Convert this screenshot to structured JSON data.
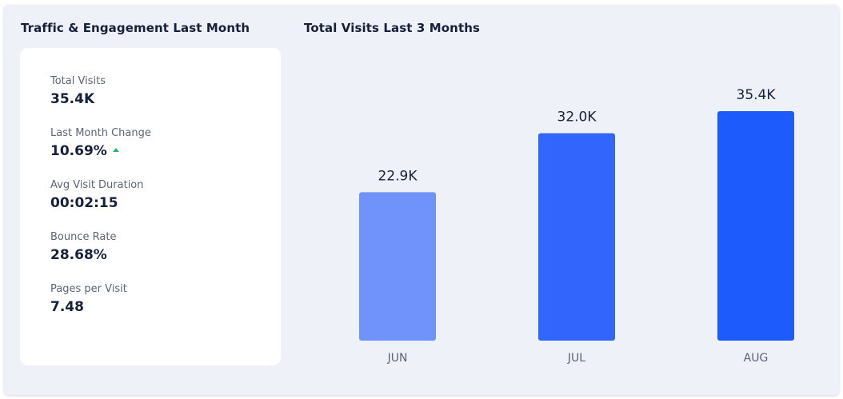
{
  "left_panel": {
    "title": "Traffic & Engagement Last Month",
    "metrics": [
      {
        "label": "Total Visits",
        "value": "35.4K"
      },
      {
        "label": "Last Month Change",
        "value": "10.69%",
        "trend": "up"
      },
      {
        "label": "Avg Visit Duration",
        "value": "00:02:15"
      },
      {
        "label": "Bounce Rate",
        "value": "28.68%"
      },
      {
        "label": "Pages per Visit",
        "value": "7.48"
      }
    ]
  },
  "colors": {
    "trend_up": "#22b573",
    "bar_light": "#6f93fb",
    "bar_mid": "#3165fb",
    "bar_dark": "#1e5bfd"
  },
  "chart_data": {
    "type": "bar",
    "title": "Total Visits Last 3 Months",
    "categories": [
      "JUN",
      "JUL",
      "AUG"
    ],
    "values": [
      22.9,
      32.0,
      35.4
    ],
    "value_labels": [
      "22.9K",
      "32.0K",
      "35.4K"
    ],
    "unit": "K",
    "ylim": [
      0,
      35.4
    ],
    "grid": false,
    "legend": "none",
    "xlabel": "",
    "ylabel": "",
    "bar_colors": [
      "#6f93fb",
      "#3165fb",
      "#1e5bfd"
    ]
  }
}
